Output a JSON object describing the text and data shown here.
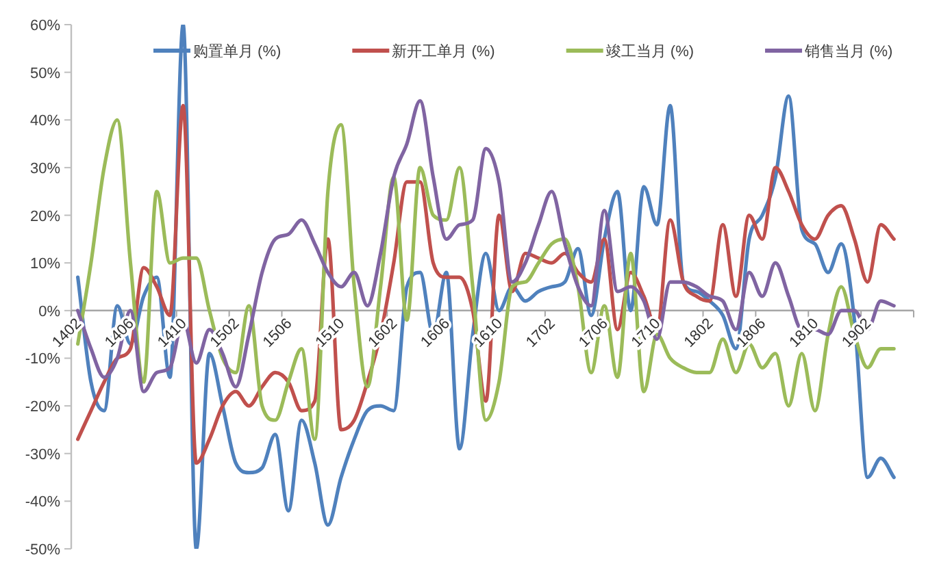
{
  "chart_data": {
    "type": "line",
    "categories": [
      "1402",
      null,
      null,
      null,
      "1406",
      null,
      null,
      null,
      "1410",
      null,
      null,
      null,
      "1502",
      null,
      null,
      null,
      "1506",
      null,
      null,
      null,
      "1510",
      null,
      null,
      null,
      "1602",
      null,
      null,
      null,
      "1606",
      null,
      null,
      null,
      "1610",
      null,
      null,
      null,
      "1702",
      null,
      null,
      null,
      "1706",
      null,
      null,
      null,
      "1710",
      null,
      null,
      null,
      "1802",
      null,
      null,
      null,
      "1806",
      null,
      null,
      null,
      "1810",
      null,
      null,
      null,
      "1902",
      null,
      null,
      null
    ],
    "series": [
      {
        "name": "购置单月 (%)",
        "color": "#4f81bd",
        "values": [
          7,
          -15,
          -21,
          1,
          -7,
          3,
          7,
          -14,
          60,
          -50,
          -9,
          -20,
          -32,
          -34,
          -33,
          -26,
          -42,
          -23,
          -32,
          -45,
          -35,
          -27,
          -21,
          -20,
          -21,
          5,
          8,
          -5,
          8,
          -29,
          -5,
          12,
          0,
          5,
          2,
          4,
          5,
          6,
          13,
          -1,
          15,
          25,
          0,
          26,
          18,
          43,
          6,
          4,
          2,
          -1,
          -8,
          15,
          20,
          28,
          45,
          17,
          14,
          8,
          14,
          -2,
          -35,
          -31,
          -35,
          null
        ]
      },
      {
        "name": "新开工单月 (%)",
        "color": "#c0504d",
        "values": [
          -27,
          -21,
          -15,
          -10,
          -8,
          9,
          5,
          -1,
          43,
          -32,
          -27,
          -20,
          -17,
          -20,
          -16,
          -13,
          -15,
          -21,
          -19,
          15,
          -25,
          -23,
          -15,
          -5,
          10,
          27,
          27,
          10,
          7,
          7,
          0,
          -19,
          20,
          4,
          12,
          11,
          10,
          12,
          8,
          6,
          15,
          -4,
          8,
          3,
          -4,
          19,
          6,
          3,
          2,
          18,
          3,
          20,
          15,
          30,
          25,
          18,
          15,
          20,
          22,
          15,
          6,
          18,
          15,
          null
        ]
      },
      {
        "name": "竣工当月 (%)",
        "color": "#9bbb59",
        "values": [
          -7,
          10,
          30,
          40,
          10,
          -15,
          25,
          10,
          11,
          11,
          0,
          -10,
          -13,
          1,
          -20,
          -23,
          -15,
          -8,
          -27,
          25,
          39,
          5,
          -16,
          5,
          28,
          -2,
          30,
          20,
          19,
          30,
          5,
          -23,
          -15,
          5,
          6,
          10,
          14,
          15,
          5,
          -13,
          1,
          -14,
          12,
          -17,
          -5,
          -10,
          -12,
          -13,
          -13,
          -6,
          -13,
          -7,
          -12,
          -9,
          -20,
          -9,
          -21,
          -5,
          5,
          -5,
          -12,
          -8,
          -8,
          null
        ]
      },
      {
        "name": "销售当月 (%)",
        "color": "#8064a2",
        "values": [
          0,
          -8,
          -14,
          -10,
          0,
          -17,
          -13,
          -12,
          -2,
          -11,
          -4,
          -9,
          -16,
          -5,
          8,
          15,
          16,
          19,
          14,
          8,
          5,
          8,
          1,
          12,
          28,
          35,
          44,
          28,
          15,
          18,
          19,
          34,
          27,
          6,
          10,
          18,
          25,
          14,
          5,
          1,
          21,
          4,
          5,
          2,
          -6,
          6,
          6,
          5,
          3,
          2,
          -4,
          8,
          3,
          10,
          3,
          -4,
          -4,
          -5,
          0,
          0,
          -4,
          2,
          1,
          null
        ]
      }
    ],
    "ylim": [
      -50,
      60
    ],
    "yticks": [
      {
        "value": -50,
        "label": "-50%"
      },
      {
        "value": -40,
        "label": "-40%"
      },
      {
        "value": -30,
        "label": "-30%"
      },
      {
        "value": -20,
        "label": "-20%"
      },
      {
        "value": -10,
        "label": "-10%"
      },
      {
        "value": 0,
        "label": "0%"
      },
      {
        "value": 10,
        "label": "10%"
      },
      {
        "value": 20,
        "label": "20%"
      },
      {
        "value": 30,
        "label": "30%"
      },
      {
        "value": 40,
        "label": "40%"
      },
      {
        "value": 50,
        "label": "50%"
      },
      {
        "value": 60,
        "label": "60%"
      }
    ],
    "grid": false,
    "legend": "top"
  }
}
